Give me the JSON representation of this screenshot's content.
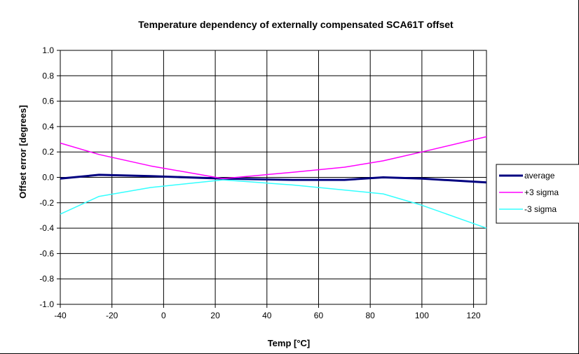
{
  "chart_data": {
    "type": "line",
    "title": "Temperature dependency of externally compensated SCA61T offset",
    "xlabel": "Temp [°C]",
    "ylabel": "Offset error [degrees]",
    "xlim": [
      -40,
      125
    ],
    "ylim": [
      -1.0,
      1.0
    ],
    "x_ticks": [
      "-40",
      "-20",
      "0",
      "20",
      "40",
      "60",
      "80",
      "100",
      "120"
    ],
    "y_ticks": [
      "-1.0",
      "-0.8",
      "-0.6",
      "-0.4",
      "-0.2",
      "0.0",
      "0.2",
      "0.4",
      "0.6",
      "0.8",
      "1.0"
    ],
    "grid": true,
    "legend_position": "right",
    "series": [
      {
        "name": "average",
        "color": "#000080",
        "points": [
          [
            -40,
            -0.01
          ],
          [
            -25,
            0.02
          ],
          [
            -5,
            0.01
          ],
          [
            23,
            -0.01
          ],
          [
            50,
            -0.02
          ],
          [
            70,
            -0.02
          ],
          [
            85,
            0.0
          ],
          [
            100,
            -0.01
          ],
          [
            125,
            -0.04
          ]
        ]
      },
      {
        "name": "+3 sigma",
        "color": "#ff00ff",
        "points": [
          [
            -40,
            0.27
          ],
          [
            -25,
            0.18
          ],
          [
            -5,
            0.09
          ],
          [
            23,
            -0.01
          ],
          [
            50,
            0.04
          ],
          [
            70,
            0.08
          ],
          [
            85,
            0.13
          ],
          [
            100,
            0.2
          ],
          [
            125,
            0.32
          ]
        ]
      },
      {
        "name": "-3 sigma",
        "color": "#33ffff",
        "points": [
          [
            -40,
            -0.29
          ],
          [
            -25,
            -0.15
          ],
          [
            -5,
            -0.08
          ],
          [
            23,
            -0.02
          ],
          [
            50,
            -0.06
          ],
          [
            70,
            -0.1
          ],
          [
            85,
            -0.13
          ],
          [
            100,
            -0.22
          ],
          [
            125,
            -0.4
          ]
        ]
      }
    ]
  }
}
